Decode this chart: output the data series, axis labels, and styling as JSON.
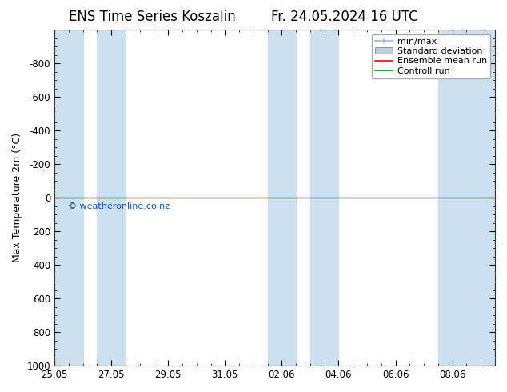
{
  "title_left": "ENS Time Series Koszalin",
  "title_right": "Fr. 24.05.2024 16 UTC",
  "ylabel": "Max Temperature 2m (°C)",
  "ylim_bottom": 1000,
  "ylim_top": -1000,
  "yticks": [
    -800,
    -600,
    -400,
    -200,
    0,
    200,
    400,
    600,
    800,
    1000
  ],
  "xtick_labels": [
    "25.05",
    "27.05",
    "29.05",
    "31.05",
    "02.06",
    "04.06",
    "06.06",
    "08.06"
  ],
  "xtick_positions": [
    0,
    2,
    4,
    6,
    8,
    10,
    12,
    14
  ],
  "xlim": [
    0,
    15.5
  ],
  "shaded_columns": [
    {
      "start": 0.0,
      "end": 1.0
    },
    {
      "start": 1.5,
      "end": 2.5
    },
    {
      "start": 7.5,
      "end": 8.5
    },
    {
      "start": 9.0,
      "end": 10.0
    },
    {
      "start": 13.5,
      "end": 15.5
    }
  ],
  "hline_green_y": 0,
  "hline_green_color": "#009900",
  "hline_red_y": 0,
  "hline_red_color": "#ff0000",
  "watermark": "© weatheronline.co.nz",
  "watermark_color": "#1155bb",
  "background_color": "#ffffff",
  "plot_bg_color": "#ffffff",
  "shade_color": "#cce0f0",
  "legend_items": [
    {
      "label": "min/max"
    },
    {
      "label": "Standard deviation"
    },
    {
      "label": "Ensemble mean run"
    },
    {
      "label": "Controll run"
    }
  ],
  "legend_colors": [
    "#99bbdd",
    "#bbccdd",
    "#ff0000",
    "#009900"
  ],
  "title_fontsize": 12,
  "axis_fontsize": 9,
  "tick_fontsize": 8.5,
  "legend_fontsize": 8
}
